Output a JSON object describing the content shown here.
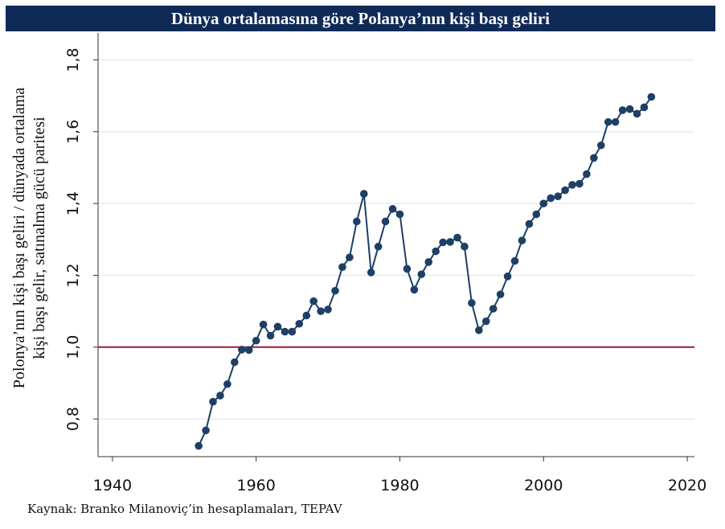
{
  "header": {
    "title": "Dünya ortalamasına göre Polanya’nın kişi başı geliri"
  },
  "footer": {
    "source": "Kaynak: Branko Milanoviç’in hesaplamaları, TEPAV"
  },
  "chart_data": {
    "type": "line",
    "title": "Dünya ortalamasına göre Polanya’nın kişi başı geliri",
    "ylabel_lines": [
      "Polonya’nın kişi başı geliri / dünyada ortalama",
      "kişi başı gelir, satınalma gücü paritesi"
    ],
    "xlabel": "",
    "xlim": [
      1938,
      2021
    ],
    "ylim": [
      0.695,
      1.875
    ],
    "x_ticks": [
      1940,
      1960,
      1980,
      2000,
      2020
    ],
    "x_tick_labels": [
      "1940",
      "1960",
      "1980",
      "2000",
      "2020"
    ],
    "y_ticks": [
      0.8,
      1.0,
      1.2,
      1.4,
      1.6,
      1.8
    ],
    "y_tick_labels": [
      "0,8",
      "1,0",
      "1,2",
      "1,4",
      "1,6",
      "1,8"
    ],
    "grid": true,
    "reference_line": {
      "y": 1.0,
      "color": "#9b1b3a"
    },
    "series_color": "#1e3f66",
    "series": [
      {
        "x": [
          1952,
          1953,
          1954,
          1955,
          1956,
          1957,
          1958,
          1959,
          1960,
          1961,
          1962,
          1963,
          1964,
          1965,
          1966,
          1967,
          1968,
          1969,
          1970,
          1971,
          1972,
          1973,
          1974,
          1975,
          1976,
          1977,
          1978,
          1979,
          1980,
          1981,
          1982,
          1983,
          1984,
          1985,
          1986,
          1987,
          1988,
          1989,
          1990,
          1991,
          1992,
          1993,
          1994,
          1995,
          1996,
          1997,
          1998,
          1999,
          2000,
          2001,
          2002,
          2003,
          2004,
          2005,
          2006,
          2007,
          2008,
          2009,
          2010,
          2011,
          2012,
          2013,
          2014,
          2015
        ],
        "y": [
          0.725,
          0.768,
          0.848,
          0.865,
          0.897,
          0.958,
          0.993,
          0.992,
          1.018,
          1.063,
          1.032,
          1.057,
          1.043,
          1.043,
          1.065,
          1.088,
          1.128,
          1.1,
          1.105,
          1.157,
          1.223,
          1.25,
          1.35,
          1.427,
          1.208,
          1.28,
          1.35,
          1.385,
          1.37,
          1.218,
          1.16,
          1.203,
          1.237,
          1.267,
          1.292,
          1.293,
          1.305,
          1.28,
          1.123,
          1.047,
          1.072,
          1.107,
          1.147,
          1.197,
          1.24,
          1.297,
          1.343,
          1.37,
          1.4,
          1.415,
          1.42,
          1.437,
          1.452,
          1.455,
          1.482,
          1.527,
          1.562,
          1.627,
          1.627,
          1.66,
          1.663,
          1.65,
          1.668,
          1.697
        ]
      }
    ]
  }
}
